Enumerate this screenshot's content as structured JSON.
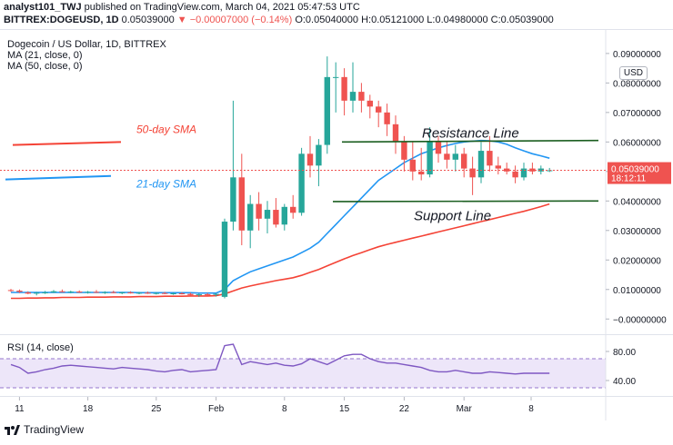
{
  "header": {
    "publisher": "analyst101_TWJ",
    "published_text": "published on TradingView.com, March 04, 2021 05:47:53 UTC",
    "symbol_line": "BITTREX:DOGEUSD, 1D",
    "price": "0.05039000",
    "change": "▼ −0.00007000 (−0.14%)",
    "o": "O:0.05040000",
    "h": "H:0.05121000",
    "l": "L:0.04980000",
    "c": "C:0.05039000"
  },
  "legend": {
    "title": "Dogecoin / US Dollar, 1D, BITTREX",
    "ma21": "MA (21, close, 0)",
    "ma50": "MA (50, close, 0)",
    "rsi": "RSI (14, close)"
  },
  "usd_button": "USD",
  "price_tag": {
    "price": "0.05039000",
    "countdown": "18:12:11"
  },
  "annotations": {
    "sma50": "50-day SMA",
    "sma21": "21-day SMA",
    "resistance": "Resistance Line",
    "support": "Support Line"
  },
  "footer": {
    "brand": "TradingView"
  },
  "colors": {
    "up": "#26a69a",
    "down": "#ef5350",
    "ma21": "#2196f3",
    "ma50": "#f44336",
    "line": "#1b5e20",
    "rsi": "#7e57c2",
    "rsi_band": "#e1d5f5"
  },
  "chart_data": {
    "type": "candlestick",
    "title": "Dogecoin / US Dollar, 1D, BITTREX",
    "y_ticks": [
      "0.09000000",
      "0.08000000",
      "0.07000000",
      "0.06000000",
      "0.05000000",
      "0.04000000",
      "0.03000000",
      "0.02000000",
      "0.01000000",
      "−0.00000000"
    ],
    "ylim": [
      -0.003,
      0.0955
    ],
    "x_ticks": [
      "11",
      "18",
      "25",
      "Feb",
      "8",
      "15",
      "22",
      "Mar",
      "8"
    ],
    "candles": [
      [
        0.0098,
        0.0102,
        0.0092,
        0.0096
      ],
      [
        0.0096,
        0.01,
        0.0088,
        0.0092
      ],
      [
        0.009,
        0.0094,
        0.0084,
        0.0086
      ],
      [
        0.0086,
        0.0092,
        0.008,
        0.0089
      ],
      [
        0.0089,
        0.0095,
        0.0085,
        0.009
      ],
      [
        0.009,
        0.0098,
        0.0088,
        0.0094
      ],
      [
        0.0094,
        0.01,
        0.009,
        0.0091
      ],
      [
        0.0091,
        0.0096,
        0.0087,
        0.0093
      ],
      [
        0.0093,
        0.0097,
        0.0088,
        0.009
      ],
      [
        0.009,
        0.0095,
        0.0086,
        0.0092
      ],
      [
        0.0092,
        0.0098,
        0.0088,
        0.0089
      ],
      [
        0.0089,
        0.0094,
        0.0085,
        0.0091
      ],
      [
        0.0091,
        0.0096,
        0.0087,
        0.0088
      ],
      [
        0.0088,
        0.0092,
        0.0084,
        0.009
      ],
      [
        0.009,
        0.0094,
        0.0086,
        0.0088
      ],
      [
        0.0088,
        0.0092,
        0.0084,
        0.0089
      ],
      [
        0.0089,
        0.0093,
        0.0085,
        0.0087
      ],
      [
        0.0087,
        0.0091,
        0.0083,
        0.0088
      ],
      [
        0.0088,
        0.0092,
        0.0084,
        0.0086
      ],
      [
        0.0086,
        0.009,
        0.0082,
        0.0087
      ],
      [
        0.0087,
        0.0091,
        0.0083,
        0.0085
      ],
      [
        0.0085,
        0.0089,
        0.0078,
        0.0081
      ],
      [
        0.0081,
        0.0086,
        0.0075,
        0.0084
      ],
      [
        0.0084,
        0.0088,
        0.0079,
        0.0082
      ],
      [
        0.0082,
        0.0087,
        0.0076,
        0.0085
      ],
      [
        0.0075,
        0.034,
        0.007,
        0.033
      ],
      [
        0.033,
        0.074,
        0.03,
        0.048
      ],
      [
        0.048,
        0.056,
        0.025,
        0.03
      ],
      [
        0.03,
        0.042,
        0.024,
        0.039
      ],
      [
        0.039,
        0.043,
        0.03,
        0.034
      ],
      [
        0.034,
        0.04,
        0.029,
        0.037
      ],
      [
        0.037,
        0.041,
        0.031,
        0.032
      ],
      [
        0.032,
        0.039,
        0.03,
        0.038
      ],
      [
        0.038,
        0.042,
        0.034,
        0.036
      ],
      [
        0.036,
        0.058,
        0.035,
        0.056
      ],
      [
        0.056,
        0.062,
        0.048,
        0.052
      ],
      [
        0.052,
        0.061,
        0.045,
        0.059
      ],
      [
        0.059,
        0.089,
        0.056,
        0.082
      ],
      [
        0.082,
        0.087,
        0.07,
        0.082
      ],
      [
        0.082,
        0.085,
        0.069,
        0.074
      ],
      [
        0.074,
        0.087,
        0.07,
        0.077
      ],
      [
        0.077,
        0.08,
        0.07,
        0.074
      ],
      [
        0.074,
        0.076,
        0.068,
        0.072
      ],
      [
        0.072,
        0.074,
        0.065,
        0.07
      ],
      [
        0.07,
        0.073,
        0.062,
        0.066
      ],
      [
        0.066,
        0.069,
        0.056,
        0.06
      ],
      [
        0.06,
        0.062,
        0.05,
        0.054
      ],
      [
        0.054,
        0.06,
        0.047,
        0.05
      ],
      [
        0.05,
        0.058,
        0.047,
        0.049
      ],
      [
        0.049,
        0.065,
        0.048,
        0.06
      ],
      [
        0.06,
        0.062,
        0.053,
        0.056
      ],
      [
        0.056,
        0.06,
        0.051,
        0.054
      ],
      [
        0.054,
        0.059,
        0.05,
        0.056
      ],
      [
        0.056,
        0.058,
        0.048,
        0.051
      ],
      [
        0.051,
        0.055,
        0.042,
        0.048
      ],
      [
        0.048,
        0.06,
        0.046,
        0.057
      ],
      [
        0.057,
        0.062,
        0.05,
        0.052
      ],
      [
        0.052,
        0.055,
        0.049,
        0.051
      ],
      [
        0.051,
        0.053,
        0.049,
        0.05
      ],
      [
        0.05,
        0.052,
        0.046,
        0.048
      ],
      [
        0.048,
        0.053,
        0.047,
        0.051
      ],
      [
        0.051,
        0.053,
        0.049,
        0.05
      ],
      [
        0.05,
        0.052,
        0.049,
        0.051
      ],
      [
        0.0504,
        0.0512,
        0.0498,
        0.0504
      ]
    ],
    "ma21": [
      0.009,
      0.009,
      0.009,
      0.009,
      0.009,
      0.009,
      0.009,
      0.009,
      0.009,
      0.009,
      0.009,
      0.009,
      0.009,
      0.009,
      0.009,
      0.0089,
      0.0089,
      0.0089,
      0.0089,
      0.0089,
      0.0089,
      0.0089,
      0.0088,
      0.0088,
      0.0088,
      0.01,
      0.013,
      0.0145,
      0.016,
      0.017,
      0.018,
      0.019,
      0.02,
      0.021,
      0.0225,
      0.024,
      0.026,
      0.029,
      0.032,
      0.035,
      0.038,
      0.041,
      0.044,
      0.047,
      0.049,
      0.051,
      0.053,
      0.0545,
      0.056,
      0.057,
      0.058,
      0.0588,
      0.0595,
      0.06,
      0.0603,
      0.0605,
      0.0604,
      0.06,
      0.0592,
      0.058,
      0.057,
      0.056,
      0.0553,
      0.0545
    ],
    "ma50": [
      0.007,
      0.007,
      0.0071,
      0.0071,
      0.0072,
      0.0072,
      0.0073,
      0.0073,
      0.0073,
      0.0074,
      0.0074,
      0.0074,
      0.0075,
      0.0075,
      0.0075,
      0.0076,
      0.0076,
      0.0076,
      0.0077,
      0.0077,
      0.0077,
      0.0078,
      0.0078,
      0.0078,
      0.0079,
      0.0085,
      0.0095,
      0.0105,
      0.0112,
      0.0118,
      0.0124,
      0.013,
      0.0135,
      0.014,
      0.0148,
      0.0158,
      0.0168,
      0.018,
      0.0192,
      0.0204,
      0.0215,
      0.0225,
      0.0235,
      0.0245,
      0.0253,
      0.026,
      0.0267,
      0.0274,
      0.0281,
      0.0288,
      0.0295,
      0.0302,
      0.0309,
      0.0316,
      0.0323,
      0.033,
      0.0337,
      0.0344,
      0.0351,
      0.0358,
      0.0365,
      0.0373,
      0.0381,
      0.039
    ],
    "rsi": {
      "ticks": [
        "80.00",
        "40.00"
      ],
      "ylim": [
        20,
        100
      ],
      "band": [
        30,
        70
      ],
      "values": [
        62,
        58,
        50,
        52,
        55,
        57,
        60,
        61,
        60,
        59,
        58,
        57,
        56,
        58,
        57,
        56,
        55,
        53,
        52,
        54,
        55,
        52,
        53,
        54,
        55,
        88,
        90,
        62,
        66,
        64,
        62,
        64,
        61,
        60,
        63,
        70,
        66,
        62,
        68,
        74,
        76,
        76,
        70,
        66,
        64,
        64,
        62,
        60,
        58,
        54,
        52,
        52,
        54,
        52,
        50,
        50,
        52,
        51,
        50,
        49,
        50,
        50,
        50,
        50
      ]
    }
  }
}
